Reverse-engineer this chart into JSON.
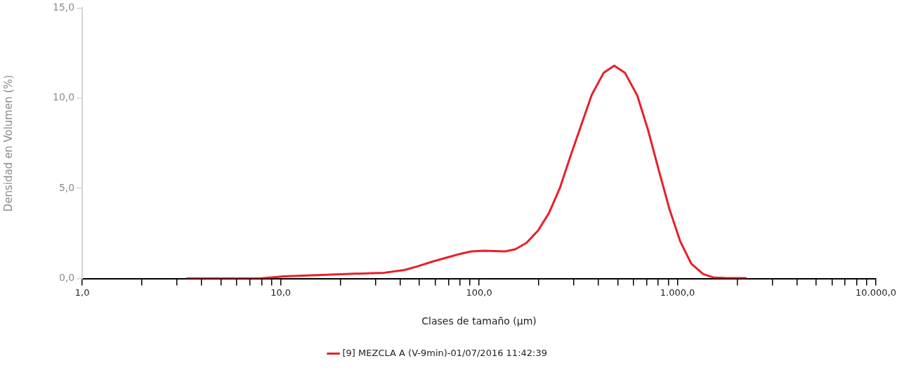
{
  "chart_data": {
    "type": "line",
    "xlabel": "Clases de tamaño (µm)",
    "ylabel": "Densidad en Volumen (%)",
    "log": "x",
    "xlim": [
      1,
      10000
    ],
    "ylim": [
      0,
      15
    ],
    "xticks": [
      {
        "value": 1,
        "label": "1,0"
      },
      {
        "value": 2,
        "label": null
      },
      {
        "value": 3,
        "label": null
      },
      {
        "value": 4,
        "label": null
      },
      {
        "value": 5,
        "label": null
      },
      {
        "value": 6,
        "label": null
      },
      {
        "value": 7,
        "label": null
      },
      {
        "value": 8,
        "label": null
      },
      {
        "value": 9,
        "label": null
      },
      {
        "value": 10,
        "label": "10,0"
      },
      {
        "value": 20,
        "label": null
      },
      {
        "value": 30,
        "label": null
      },
      {
        "value": 40,
        "label": null
      },
      {
        "value": 50,
        "label": null
      },
      {
        "value": 60,
        "label": null
      },
      {
        "value": 70,
        "label": null
      },
      {
        "value": 80,
        "label": null
      },
      {
        "value": 90,
        "label": null
      },
      {
        "value": 100,
        "label": "100,0"
      },
      {
        "value": 200,
        "label": null
      },
      {
        "value": 300,
        "label": null
      },
      {
        "value": 400,
        "label": null
      },
      {
        "value": 500,
        "label": null
      },
      {
        "value": 600,
        "label": null
      },
      {
        "value": 700,
        "label": null
      },
      {
        "value": 800,
        "label": null
      },
      {
        "value": 900,
        "label": null
      },
      {
        "value": 1000,
        "label": "1.000,0"
      },
      {
        "value": 2000,
        "label": null
      },
      {
        "value": 3000,
        "label": null
      },
      {
        "value": 4000,
        "label": null
      },
      {
        "value": 5000,
        "label": null
      },
      {
        "value": 6000,
        "label": null
      },
      {
        "value": 7000,
        "label": null
      },
      {
        "value": 8000,
        "label": null
      },
      {
        "value": 9000,
        "label": null
      },
      {
        "value": 10000,
        "label": "10.000,0"
      }
    ],
    "yticks": [
      {
        "value": 0,
        "label": "0,0"
      },
      {
        "value": 5,
        "label": "5,0"
      },
      {
        "value": 10,
        "label": "10,0"
      },
      {
        "value": 15,
        "label": "15,0"
      }
    ],
    "grid": false,
    "legend": "bottom",
    "marker": "none",
    "line_style": "solid",
    "series": [
      {
        "name": "[9] MEZCLA A (V-9min)-01/07/2016 11:42:39",
        "color": "#e8202a",
        "x": [
          3.35,
          7.85,
          10.4,
          20,
          33.2,
          42,
          48.8,
          58.6,
          69.8,
          81.2,
          91.2,
          106,
          135,
          152,
          173,
          198,
          225,
          255,
          288,
          327,
          370,
          424,
          480,
          544,
          627,
          710,
          805,
          912,
          1033,
          1172,
          1349,
          1530,
          1734,
          2228
        ],
        "values": [
          0,
          0,
          0.12,
          0.24,
          0.32,
          0.47,
          0.67,
          0.95,
          1.18,
          1.38,
          1.5,
          1.54,
          1.5,
          1.62,
          1.97,
          2.65,
          3.63,
          5.0,
          6.75,
          8.5,
          10.2,
          11.4,
          11.8,
          11.4,
          10.15,
          8.25,
          6.0,
          3.83,
          2.05,
          0.83,
          0.24,
          0.05,
          0.03,
          0.02
        ]
      }
    ]
  }
}
